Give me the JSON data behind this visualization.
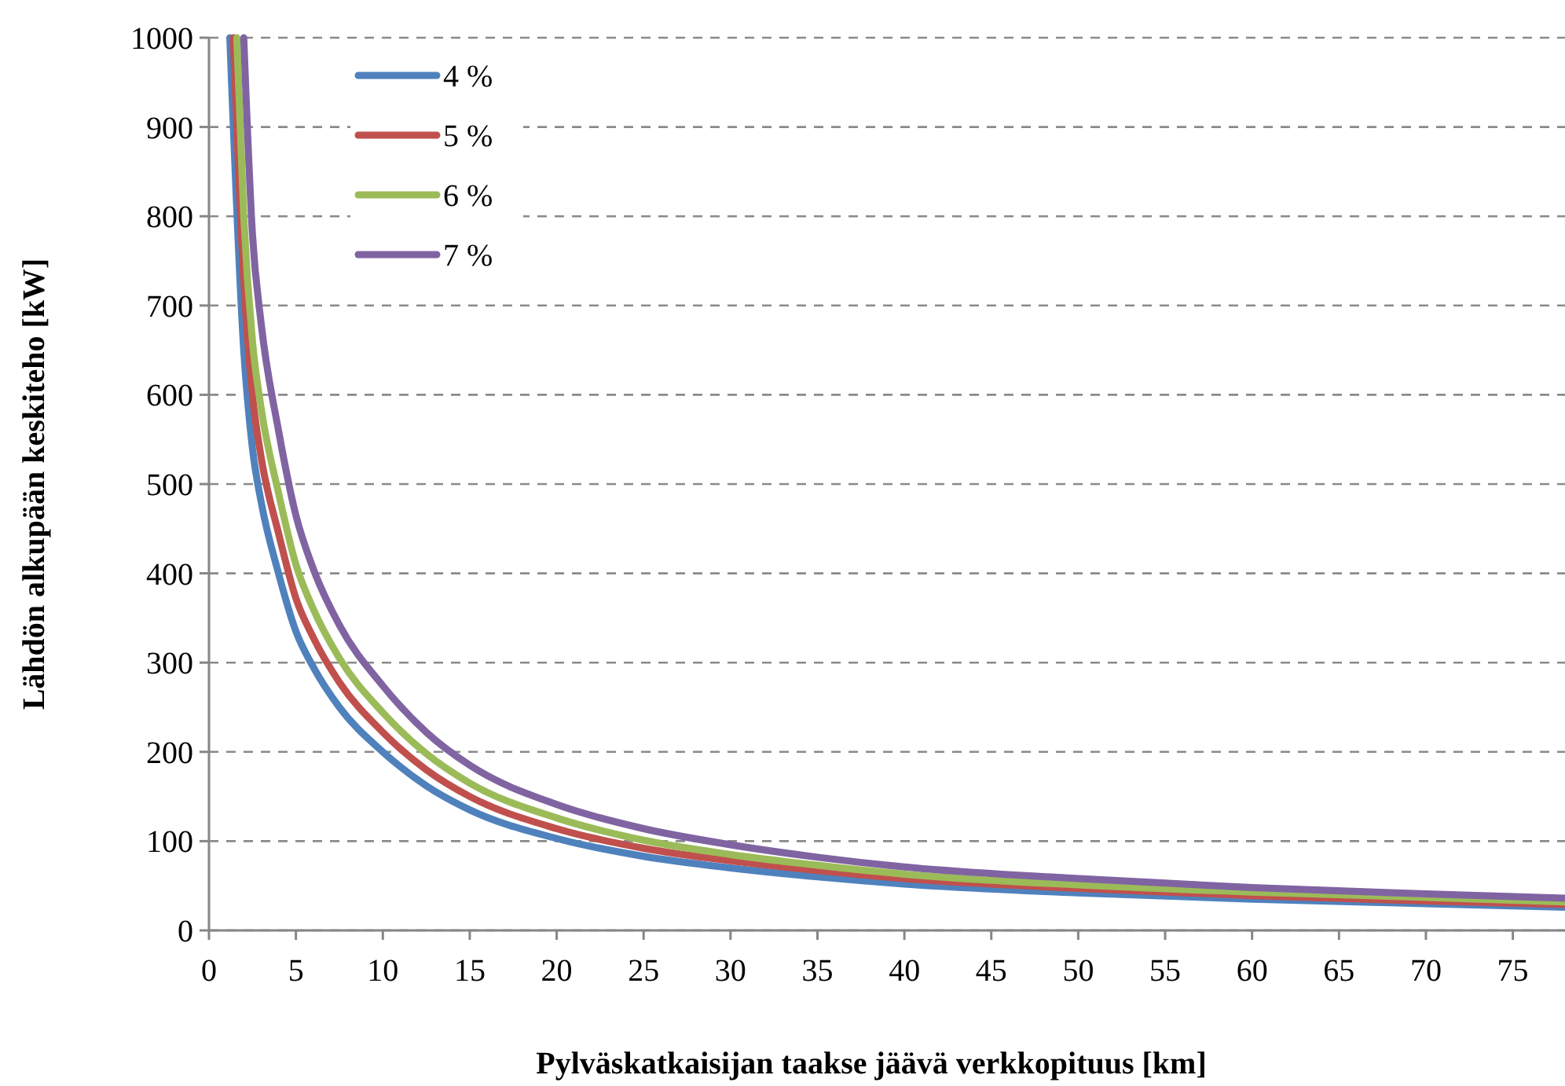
{
  "chart_data": {
    "type": "line",
    "xlabel": "Pylväskatkaisijan taakse jäävä verkkopituus [km]",
    "ylabel": "Lähdön alkupään keskiteho [kW]",
    "xlim": [
      0,
      78
    ],
    "xticks": [
      0,
      5,
      10,
      15,
      20,
      25,
      30,
      35,
      40,
      45,
      50,
      55,
      60,
      65,
      70,
      75
    ],
    "ylim": [
      0,
      1000
    ],
    "yticks": [
      0,
      100,
      200,
      300,
      400,
      500,
      600,
      700,
      800,
      900,
      1000
    ],
    "grid": "y",
    "legend": "top left",
    "marker": "none",
    "line_style": "solid",
    "series": [
      {
        "name": "4 %",
        "color": "#4f81bd",
        "x": [
          1.2,
          2,
          2.5,
          3,
          4,
          5,
          6,
          7.5,
          10,
          12.5,
          15,
          20,
          25,
          30,
          35,
          40,
          50,
          60,
          70,
          78
        ],
        "values": [
          1000,
          650,
          540,
          480,
          400,
          335,
          295,
          250,
          200,
          162,
          135,
          103,
          83,
          70,
          60,
          52,
          42,
          35,
          30,
          26
        ]
      },
      {
        "name": "5 %",
        "color": "#c0504d",
        "x": [
          1.4,
          2,
          2.5,
          3,
          4,
          5,
          6,
          7.5,
          10,
          12.5,
          15,
          20,
          25,
          30,
          35,
          40,
          50,
          60,
          70,
          78
        ],
        "values": [
          1000,
          730,
          600,
          530,
          445,
          372,
          328,
          278,
          222,
          180,
          150,
          114,
          92,
          78,
          67,
          58,
          47,
          39,
          33,
          29
        ]
      },
      {
        "name": "6 %",
        "color": "#9bbb59",
        "x": [
          1.6,
          2,
          2.5,
          3,
          4,
          5,
          6,
          7.5,
          10,
          12.5,
          15,
          20,
          25,
          30,
          35,
          40,
          50,
          60,
          70,
          78
        ],
        "values": [
          1000,
          800,
          660,
          585,
          490,
          410,
          360,
          305,
          244,
          198,
          165,
          126,
          101,
          85,
          73,
          63,
          51,
          43,
          37,
          32
        ]
      },
      {
        "name": "7 %",
        "color": "#8064a2",
        "x": [
          2,
          2.5,
          3,
          4,
          5,
          6,
          7.5,
          10,
          12.5,
          15,
          20,
          25,
          30,
          35,
          40,
          50,
          60,
          70,
          78
        ],
        "values": [
          1000,
          780,
          680,
          560,
          465,
          405,
          342,
          274,
          222,
          185,
          141,
          114,
          96,
          82,
          71,
          58,
          48,
          41,
          36
        ]
      }
    ]
  }
}
